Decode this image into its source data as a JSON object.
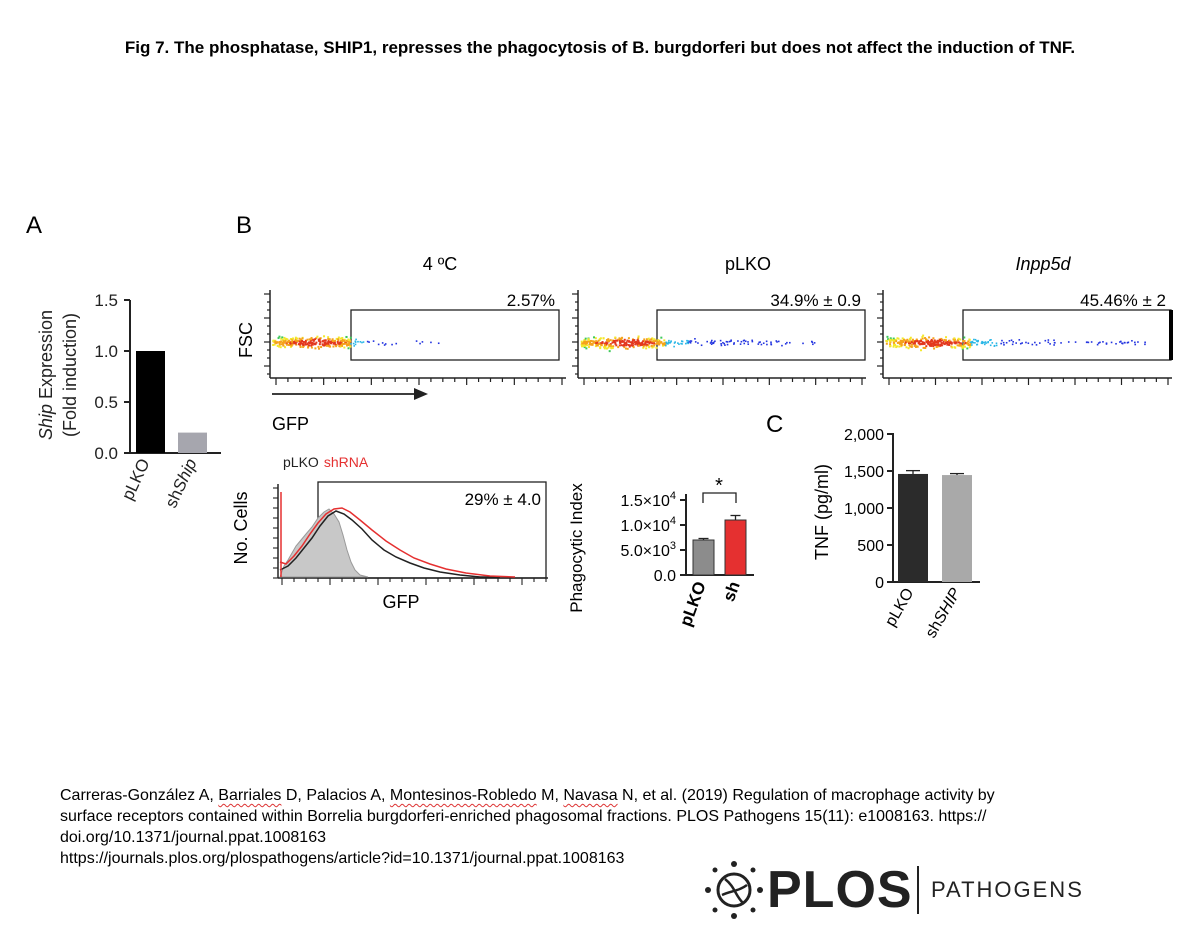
{
  "title": "Fig 7. The phosphatase, SHIP1, represses the phagocytosis of B. burgdorferi but does not affect the induction of TNF.",
  "panelA": {
    "label": "A",
    "ylabel_italic": "Ship",
    "ylabel_rest": " Expression",
    "ylabel2": "(Fold induction)",
    "chart_data": {
      "type": "bar",
      "categories": [
        "pLKO",
        "shShip"
      ],
      "tick_labels": [
        "1.5",
        "1.0",
        "0.5",
        "0.0"
      ],
      "values": [
        1.0,
        0.2
      ],
      "ylim": [
        0,
        1.5
      ],
      "colors": [
        "#000000",
        "#a6a6ae"
      ]
    },
    "cat_labels": [
      {
        "plain": "pLKO",
        "italic": ""
      },
      {
        "plain": "sh",
        "italic": "Ship"
      }
    ]
  },
  "panelB": {
    "label": "B",
    "facs_titles": [
      "4 ºC",
      "pLKO",
      "Inpp5d"
    ],
    "gate_percents": [
      "2.57%",
      "34.9% ± 0.9",
      "45.46% ± 2"
    ],
    "fsc_label": "FSC",
    "gfp_arrow_label": "GFP",
    "hist_legend_a": "pLKO",
    "hist_legend_b": "shRNA",
    "hist_gate": "29% ± 4.0",
    "hist_ylabel": "No. Cells",
    "hist_xlabel": "GFP",
    "colors": {
      "shRNA": "#e53030",
      "pLKO": "#222222",
      "control": "#c8c8c8"
    }
  },
  "phago": {
    "ylabel": "Phagocytic Index",
    "sig": "*",
    "chart_data": {
      "type": "bar",
      "categories": [
        "pLKO",
        "sh"
      ],
      "values": [
        7000,
        11000
      ],
      "errors": [
        300,
        900
      ],
      "ylim": [
        0,
        15000
      ],
      "ticks": [
        {
          "value": 15000,
          "mant": "1.5×10",
          "exp": "4"
        },
        {
          "value": 10000,
          "mant": "1.0×10",
          "exp": "4"
        },
        {
          "value": 5000,
          "mant": "5.0×10",
          "exp": "3"
        },
        {
          "value": 0,
          "mant": "0.0",
          "exp": ""
        }
      ],
      "colors": [
        "#8c8c8c",
        "#e53030"
      ]
    }
  },
  "panelC": {
    "label": "C",
    "ylabel": "TNF (pg/ml)",
    "chart_data": {
      "type": "bar",
      "categories": [
        "pLKO",
        "shSHIP"
      ],
      "values": [
        1460,
        1445
      ],
      "errors": [
        45,
        20
      ],
      "ylim": [
        0,
        2000
      ],
      "tick_labels": [
        "2,000",
        "1,500",
        "1,000",
        "500",
        "0"
      ],
      "colors": [
        "#2b2b2b",
        "#a9a9a9"
      ]
    },
    "cat_labels": [
      {
        "plain": "pLKO",
        "italic": ""
      },
      {
        "plain": "sh",
        "italic": "SHIP"
      }
    ]
  },
  "citation": {
    "a1": "Carreras-González A, ",
    "a2": "Barriales",
    "a3": " D, Palacios A, ",
    "a4": "Montesinos-Robledo",
    "a5": " M, ",
    "a6": "Navasa",
    "a7": " N, et al. (2019) Regulation of macrophage activity by",
    "line2": "surface receptors contained within Borrelia burgdorferi-enriched phagosomal fractions. PLOS Pathogens 15(11): e1008163. https://",
    "line3": "doi.org/10.1371/journal.ppat.1008163",
    "line4": "https://journals.plos.org/plospathogens/article?id=10.1371/journal.ppat.1008163"
  },
  "logo": {
    "brand": "PLOS",
    "journal": "PATHOGENS"
  }
}
